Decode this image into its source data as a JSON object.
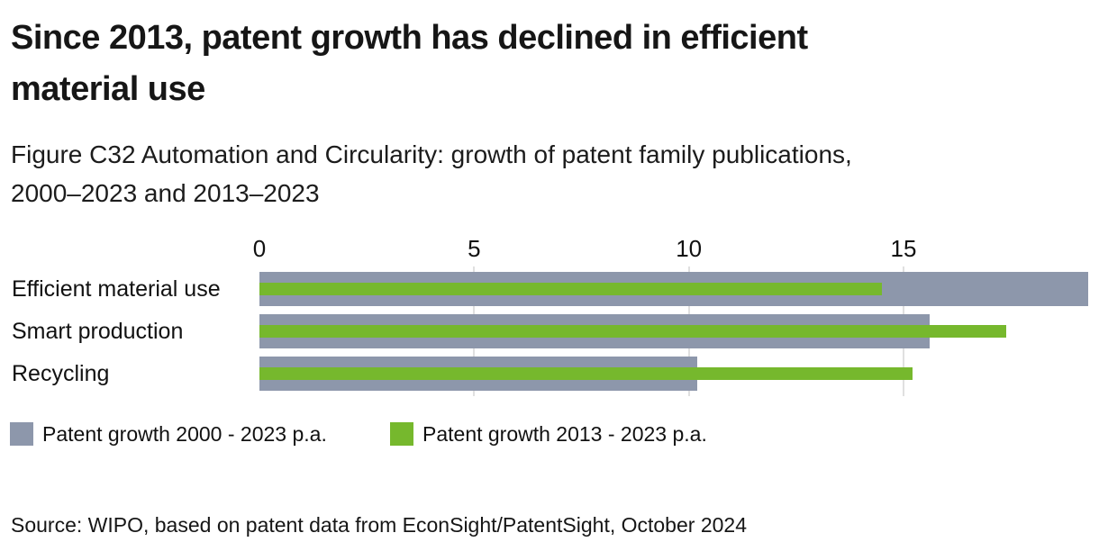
{
  "title": {
    "line1": "Since 2013, patent growth has declined in efficient",
    "line2": "material use"
  },
  "subtitle": {
    "line1": "Figure C32 Automation and Circularity: growth of patent family publications,",
    "line2": "2000–2023 and 2013–2023"
  },
  "legend": [
    {
      "label": "Patent growth 2000 - 2023 p.a.",
      "color_key": "series1"
    },
    {
      "label": "Patent growth 2013 - 2023 p.a.",
      "color_key": "series2"
    }
  ],
  "source": "Source: WIPO, based on patent data from EconSight/PatentSight, October 2024",
  "colors": {
    "series1": "#8d97ab",
    "series2": "#76b82d",
    "gridline": "#e0e0e0",
    "text": "#161616"
  },
  "chart_data": {
    "type": "bar",
    "orientation": "horizontal",
    "title": "Since 2013, patent growth has declined in efficient material use",
    "subtitle": "Figure C32 Automation and Circularity: growth of patent family publications, 2000–2023 and 2013–2023",
    "categories": [
      "Efficient material use",
      "Smart production",
      "Recycling"
    ],
    "series": [
      {
        "name": "Patent growth 2000 - 2023 p.a.",
        "color_key": "series1",
        "values": [
          19.3,
          15.6,
          10.2
        ]
      },
      {
        "name": "Patent growth 2013 - 2023 p.a.",
        "color_key": "series2",
        "values": [
          14.5,
          17.4,
          15.2
        ]
      }
    ],
    "x_ticks": [
      0,
      5,
      10,
      15
    ],
    "xlim": [
      0,
      19.3
    ],
    "xlabel": "",
    "ylabel": "",
    "grid": "vertical-at-ticks",
    "legend_position": "bottom"
  }
}
